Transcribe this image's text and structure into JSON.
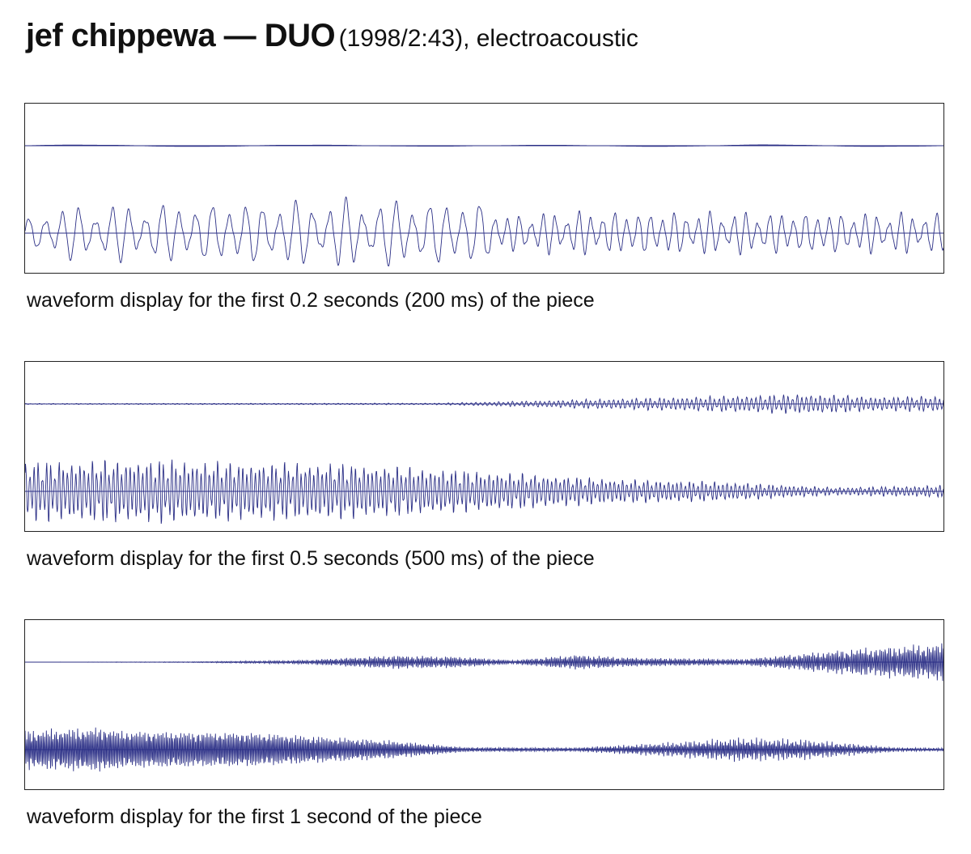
{
  "title": {
    "main": "jef chippewa — DUO",
    "details": "(1998/2:43), electroacoustic"
  },
  "colors": {
    "waveform": "#2b2f86",
    "frame": "#222222"
  },
  "chart_data": [
    {
      "type": "line",
      "caption": "waveform display for the first 0.2 seconds (200 ms) of the piece",
      "duration_ms": 200,
      "channels": [
        {
          "envelope": [
            [
              0,
              0.02
            ],
            [
              0.2,
              0.02
            ],
            [
              1,
              0.02
            ]
          ],
          "cycles": 4
        },
        {
          "envelope": [
            [
              0,
              0.35
            ],
            [
              0.03,
              0.65
            ],
            [
              0.35,
              0.85
            ],
            [
              0.5,
              0.8
            ],
            [
              0.52,
              0.45
            ],
            [
              0.6,
              0.55
            ],
            [
              1,
              0.5
            ]
          ],
          "cycles": [
            [
              0,
              1
            ],
            [
              0.5,
              1
            ],
            [
              0.52,
              1.4
            ],
            [
              1,
              1.4
            ]
          ]
        }
      ]
    },
    {
      "type": "line",
      "caption": "waveform display for the first 0.5 seconds (500 ms) of the piece",
      "duration_ms": 500,
      "channels": [
        {
          "envelope": [
            [
              0,
              0.01
            ],
            [
              0.45,
              0.02
            ],
            [
              0.62,
              0.12
            ],
            [
              0.85,
              0.25
            ],
            [
              0.93,
              0.18
            ],
            [
              1,
              0.2
            ]
          ],
          "cycles": 200
        },
        {
          "envelope": [
            [
              0,
              0.75
            ],
            [
              0.15,
              0.8
            ],
            [
              0.2,
              0.75
            ],
            [
              0.35,
              0.7
            ],
            [
              0.5,
              0.5
            ],
            [
              0.65,
              0.3
            ],
            [
              0.75,
              0.25
            ],
            [
              0.88,
              0.1
            ],
            [
              1,
              0.15
            ]
          ],
          "cycles": 220
        }
      ]
    },
    {
      "type": "line",
      "caption": "waveform display for the first 1 second of the piece",
      "duration_ms": 1000,
      "channels": [
        {
          "envelope": [
            [
              0,
              0.0
            ],
            [
              0.18,
              0.01
            ],
            [
              0.3,
              0.05
            ],
            [
              0.4,
              0.18
            ],
            [
              0.47,
              0.15
            ],
            [
              0.53,
              0.05
            ],
            [
              0.6,
              0.2
            ],
            [
              0.66,
              0.12
            ],
            [
              0.78,
              0.08
            ],
            [
              0.9,
              0.35
            ],
            [
              1,
              0.5
            ]
          ],
          "cycles": 520
        },
        {
          "envelope": [
            [
              0,
              0.55
            ],
            [
              0.09,
              0.65
            ],
            [
              0.1,
              0.55
            ],
            [
              0.25,
              0.5
            ],
            [
              0.4,
              0.25
            ],
            [
              0.48,
              0.06
            ],
            [
              0.6,
              0.05
            ],
            [
              0.7,
              0.18
            ],
            [
              0.78,
              0.3
            ],
            [
              0.85,
              0.25
            ],
            [
              0.95,
              0.05
            ],
            [
              1,
              0.04
            ]
          ],
          "cycles": 560
        }
      ]
    }
  ]
}
